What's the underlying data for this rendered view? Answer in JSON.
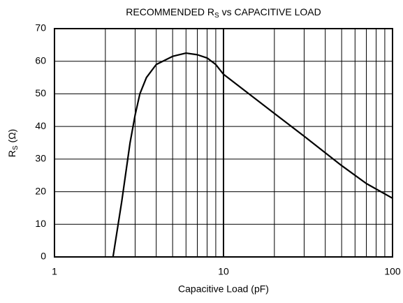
{
  "chart_data": {
    "type": "line",
    "title": [
      "RECOMMENDED R",
      "S",
      " vs CAPACITIVE LOAD"
    ],
    "xlabel": "Capacitive Load (pF)",
    "ylabel": [
      "R",
      "S",
      " (Ω)"
    ],
    "xscale": "log",
    "xlim": [
      1,
      100
    ],
    "ylim": [
      0,
      70
    ],
    "xticks": [
      1,
      10,
      100
    ],
    "xgrid": [
      2,
      3,
      4,
      5,
      6,
      7,
      8,
      9,
      20,
      30,
      40,
      50,
      60,
      70,
      80,
      90
    ],
    "yticks": [
      0,
      10,
      20,
      30,
      40,
      50,
      60,
      70
    ],
    "grid": true,
    "series": [
      {
        "name": "Rs",
        "color": "#000000",
        "x": [
          2.22,
          2.5,
          2.8,
          3,
          3.2,
          3.5,
          4,
          5,
          6,
          7,
          8,
          9,
          10,
          20,
          30,
          50,
          70,
          100
        ],
        "values": [
          0,
          17,
          35,
          43.5,
          50,
          55,
          59,
          61.5,
          62.5,
          62,
          61,
          59,
          56,
          44,
          37,
          28,
          22.5,
          18
        ]
      }
    ]
  }
}
